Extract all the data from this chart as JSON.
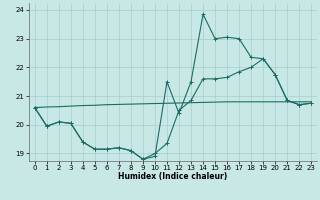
{
  "xlabel": "Humidex (Indice chaleur)",
  "bg_color": "#c8e8e6",
  "grid_color": "#a8ceca",
  "line_color": "#1a6b65",
  "xlim_min": -0.5,
  "xlim_max": 23.5,
  "ylim_min": 18.75,
  "ylim_max": 24.25,
  "xticks": [
    0,
    1,
    2,
    3,
    4,
    5,
    6,
    7,
    8,
    9,
    10,
    11,
    12,
    13,
    14,
    15,
    16,
    17,
    18,
    19,
    20,
    21,
    22,
    23
  ],
  "yticks": [
    19,
    20,
    21,
    22,
    23,
    24
  ],
  "curve1_x": [
    0,
    1,
    2,
    3,
    4,
    5,
    6,
    7,
    8,
    9,
    10,
    11,
    12,
    13,
    14,
    15,
    16,
    17,
    18,
    19,
    20,
    21,
    22,
    23
  ],
  "curve1_y": [
    20.6,
    19.95,
    20.1,
    20.05,
    19.4,
    19.15,
    19.15,
    19.2,
    19.1,
    18.8,
    18.9,
    21.5,
    20.4,
    21.5,
    23.85,
    23.0,
    23.05,
    23.0,
    22.35,
    22.3,
    21.75,
    20.85,
    20.7,
    20.75
  ],
  "curve2_x": [
    0,
    1,
    2,
    3,
    4,
    5,
    6,
    7,
    8,
    9,
    10,
    11,
    12,
    13,
    14,
    15,
    16,
    17,
    18,
    19,
    20,
    21,
    22,
    23
  ],
  "curve2_y": [
    20.6,
    19.95,
    20.1,
    20.05,
    19.4,
    19.15,
    19.15,
    19.2,
    19.1,
    18.8,
    19.0,
    19.35,
    20.5,
    20.85,
    21.6,
    21.6,
    21.65,
    21.85,
    22.0,
    22.3,
    21.75,
    20.85,
    20.7,
    20.75
  ],
  "curve3_x": [
    0,
    1,
    2,
    3,
    4,
    5,
    6,
    7,
    8,
    9,
    10,
    11,
    12,
    13,
    14,
    15,
    16,
    17,
    18,
    19,
    20,
    21,
    22,
    23
  ],
  "curve3_y": [
    20.6,
    20.62,
    20.63,
    20.65,
    20.67,
    20.68,
    20.7,
    20.71,
    20.72,
    20.73,
    20.74,
    20.75,
    20.76,
    20.77,
    20.78,
    20.79,
    20.8,
    20.8,
    20.8,
    20.8,
    20.8,
    20.8,
    20.8,
    20.8
  ]
}
